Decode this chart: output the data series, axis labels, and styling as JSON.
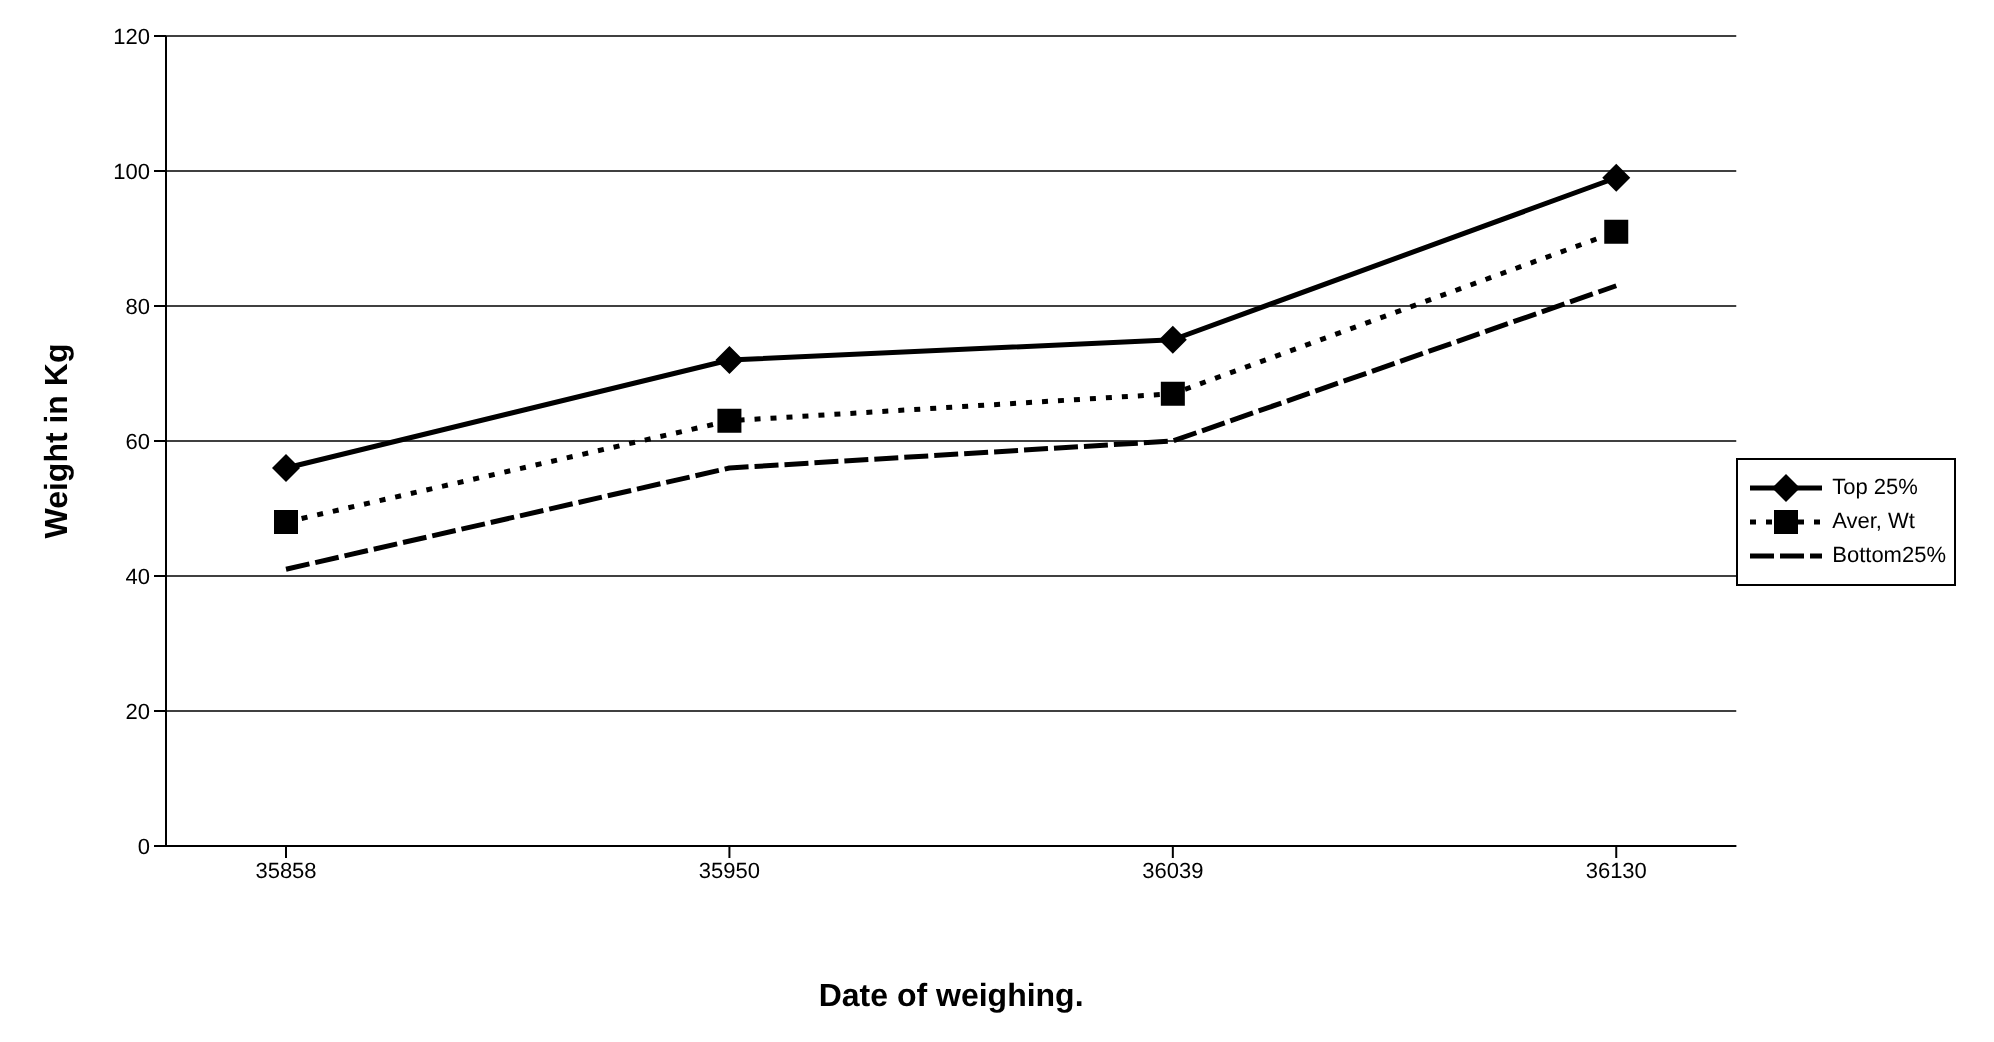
{
  "chart_data": {
    "type": "line",
    "xlabel": "Date of weighing.",
    "ylabel": "Weight in Kg",
    "categories": [
      "35858",
      "35950",
      "36039",
      "36130"
    ],
    "series": [
      {
        "name": "Top 25%",
        "color": "#000000",
        "values": [
          56,
          72,
          75,
          99
        ],
        "marker": "diamond",
        "line_style": "solid"
      },
      {
        "name": "Aver, Wt",
        "color": "#000000",
        "values": [
          48,
          63,
          67,
          91
        ],
        "marker": "square",
        "line_style": "dotted"
      },
      {
        "name": "Bottom25%",
        "color": "#000000",
        "values": [
          41,
          56,
          60,
          83
        ],
        "marker": "none",
        "line_style": "dashed"
      }
    ],
    "ylim": [
      0,
      120
    ],
    "yticks": [
      0,
      20,
      40,
      60,
      80,
      100,
      120
    ],
    "grid": "y",
    "legend": "right"
  }
}
